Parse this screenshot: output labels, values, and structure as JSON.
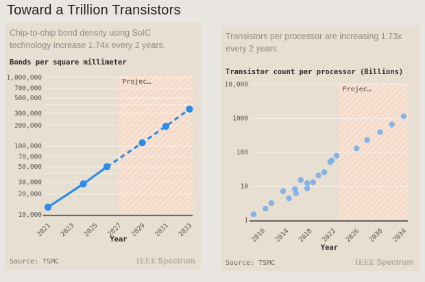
{
  "page": {
    "title": "Toward a Trillion Transistors"
  },
  "brand": {
    "ieee": "IEEE",
    "spectrum": "Spectrum"
  },
  "colors": {
    "page_bg": "#e9e6e1",
    "card_bg": "#e7dfd2",
    "line_blue": "#2e8ce8",
    "dot_blue": "#76aae9",
    "projection_fill": "#f4dac9",
    "projection_hatch": "#f9e6d8",
    "grid": "rgba(255,255,255,0.55)",
    "axis": "#6d6963",
    "tick_text": "#57534d",
    "title_text": "#232220",
    "subtitle_text": "#8f8c85"
  },
  "chart_data": [
    {
      "type": "line",
      "subtitle": "Chip-to-chip bond density using SoIC technology increase 1.74x every 2 years.",
      "title": "Bonds per square millimeter",
      "xlabel": "Year",
      "source": "Source: TSMC",
      "x_ticks": [
        2021,
        2023,
        2025,
        2027,
        2029,
        2031,
        2033
      ],
      "y_ticks": [
        {
          "label": "1,000,000",
          "v": 1000000
        },
        {
          "label": "700,000",
          "v": 700000
        },
        {
          "label": "500,000",
          "v": 500000
        },
        {
          "label": "300,000",
          "v": 300000
        },
        {
          "label": "200,000",
          "v": 200000
        },
        {
          "label": "100,000",
          "v": 100000
        },
        {
          "label": "70,000",
          "v": 70000
        },
        {
          "label": "50,000",
          "v": 50000
        },
        {
          "label": "30,000",
          "v": 30000
        },
        {
          "label": "20,000",
          "v": 20000
        },
        {
          "label": "10,000",
          "v": 10000
        }
      ],
      "extra_gridlines": [
        400000,
        40000
      ],
      "xlim": [
        2021,
        2033.5
      ],
      "ylim": [
        10000,
        1000000
      ],
      "yscale": "log",
      "projection": {
        "label": "Projec…",
        "start_year": 2027
      },
      "solid_until_year": 2026,
      "points": [
        {
          "year": 2021,
          "v": 12900
        },
        {
          "year": 2024,
          "v": 28200
        },
        {
          "year": 2026,
          "v": 50000
        },
        {
          "year": 2029,
          "v": 112000
        },
        {
          "year": 2031,
          "v": 195000
        },
        {
          "year": 2033,
          "v": 347000
        }
      ]
    },
    {
      "type": "scatter",
      "subtitle": "Transistors per processor are increasing 1.73x every 2 years.",
      "title": "Transistor count per processor (Billions)",
      "xlabel": "Year",
      "source": "Source: TSMC",
      "x_ticks": [
        2010,
        2014,
        2018,
        2022,
        2026,
        2030,
        2034
      ],
      "y_ticks": [
        {
          "label": "10,000",
          "v": 10000
        },
        {
          "label": "1000",
          "v": 1000
        },
        {
          "label": "100",
          "v": 100
        },
        {
          "label": "10",
          "v": 10
        },
        {
          "label": "1",
          "v": 1
        }
      ],
      "extra_gridlines": [],
      "xlim": [
        2008,
        2034.5
      ],
      "ylim": [
        1,
        10000
      ],
      "yscale": "log",
      "projection": {
        "label": "Projec…",
        "start_year": 2023
      },
      "points": [
        {
          "year": 2008.5,
          "v": 1.5
        },
        {
          "year": 2010.5,
          "v": 2.2
        },
        {
          "year": 2011.5,
          "v": 3.2
        },
        {
          "year": 2013.5,
          "v": 7.2
        },
        {
          "year": 2014.5,
          "v": 4.4
        },
        {
          "year": 2015.5,
          "v": 8.3
        },
        {
          "year": 2015.7,
          "v": 6.2
        },
        {
          "year": 2016.5,
          "v": 15.3
        },
        {
          "year": 2017.6,
          "v": 12.4
        },
        {
          "year": 2017.6,
          "v": 8.7
        },
        {
          "year": 2018.6,
          "v": 13.2
        },
        {
          "year": 2019.5,
          "v": 21
        },
        {
          "year": 2020.5,
          "v": 26
        },
        {
          "year": 2021.5,
          "v": 52
        },
        {
          "year": 2021.8,
          "v": 58
        },
        {
          "year": 2022.6,
          "v": 80
        },
        {
          "year": 2026,
          "v": 130
        },
        {
          "year": 2027.8,
          "v": 230
        },
        {
          "year": 2030,
          "v": 390
        },
        {
          "year": 2032,
          "v": 660
        },
        {
          "year": 2034,
          "v": 1150
        }
      ]
    }
  ]
}
